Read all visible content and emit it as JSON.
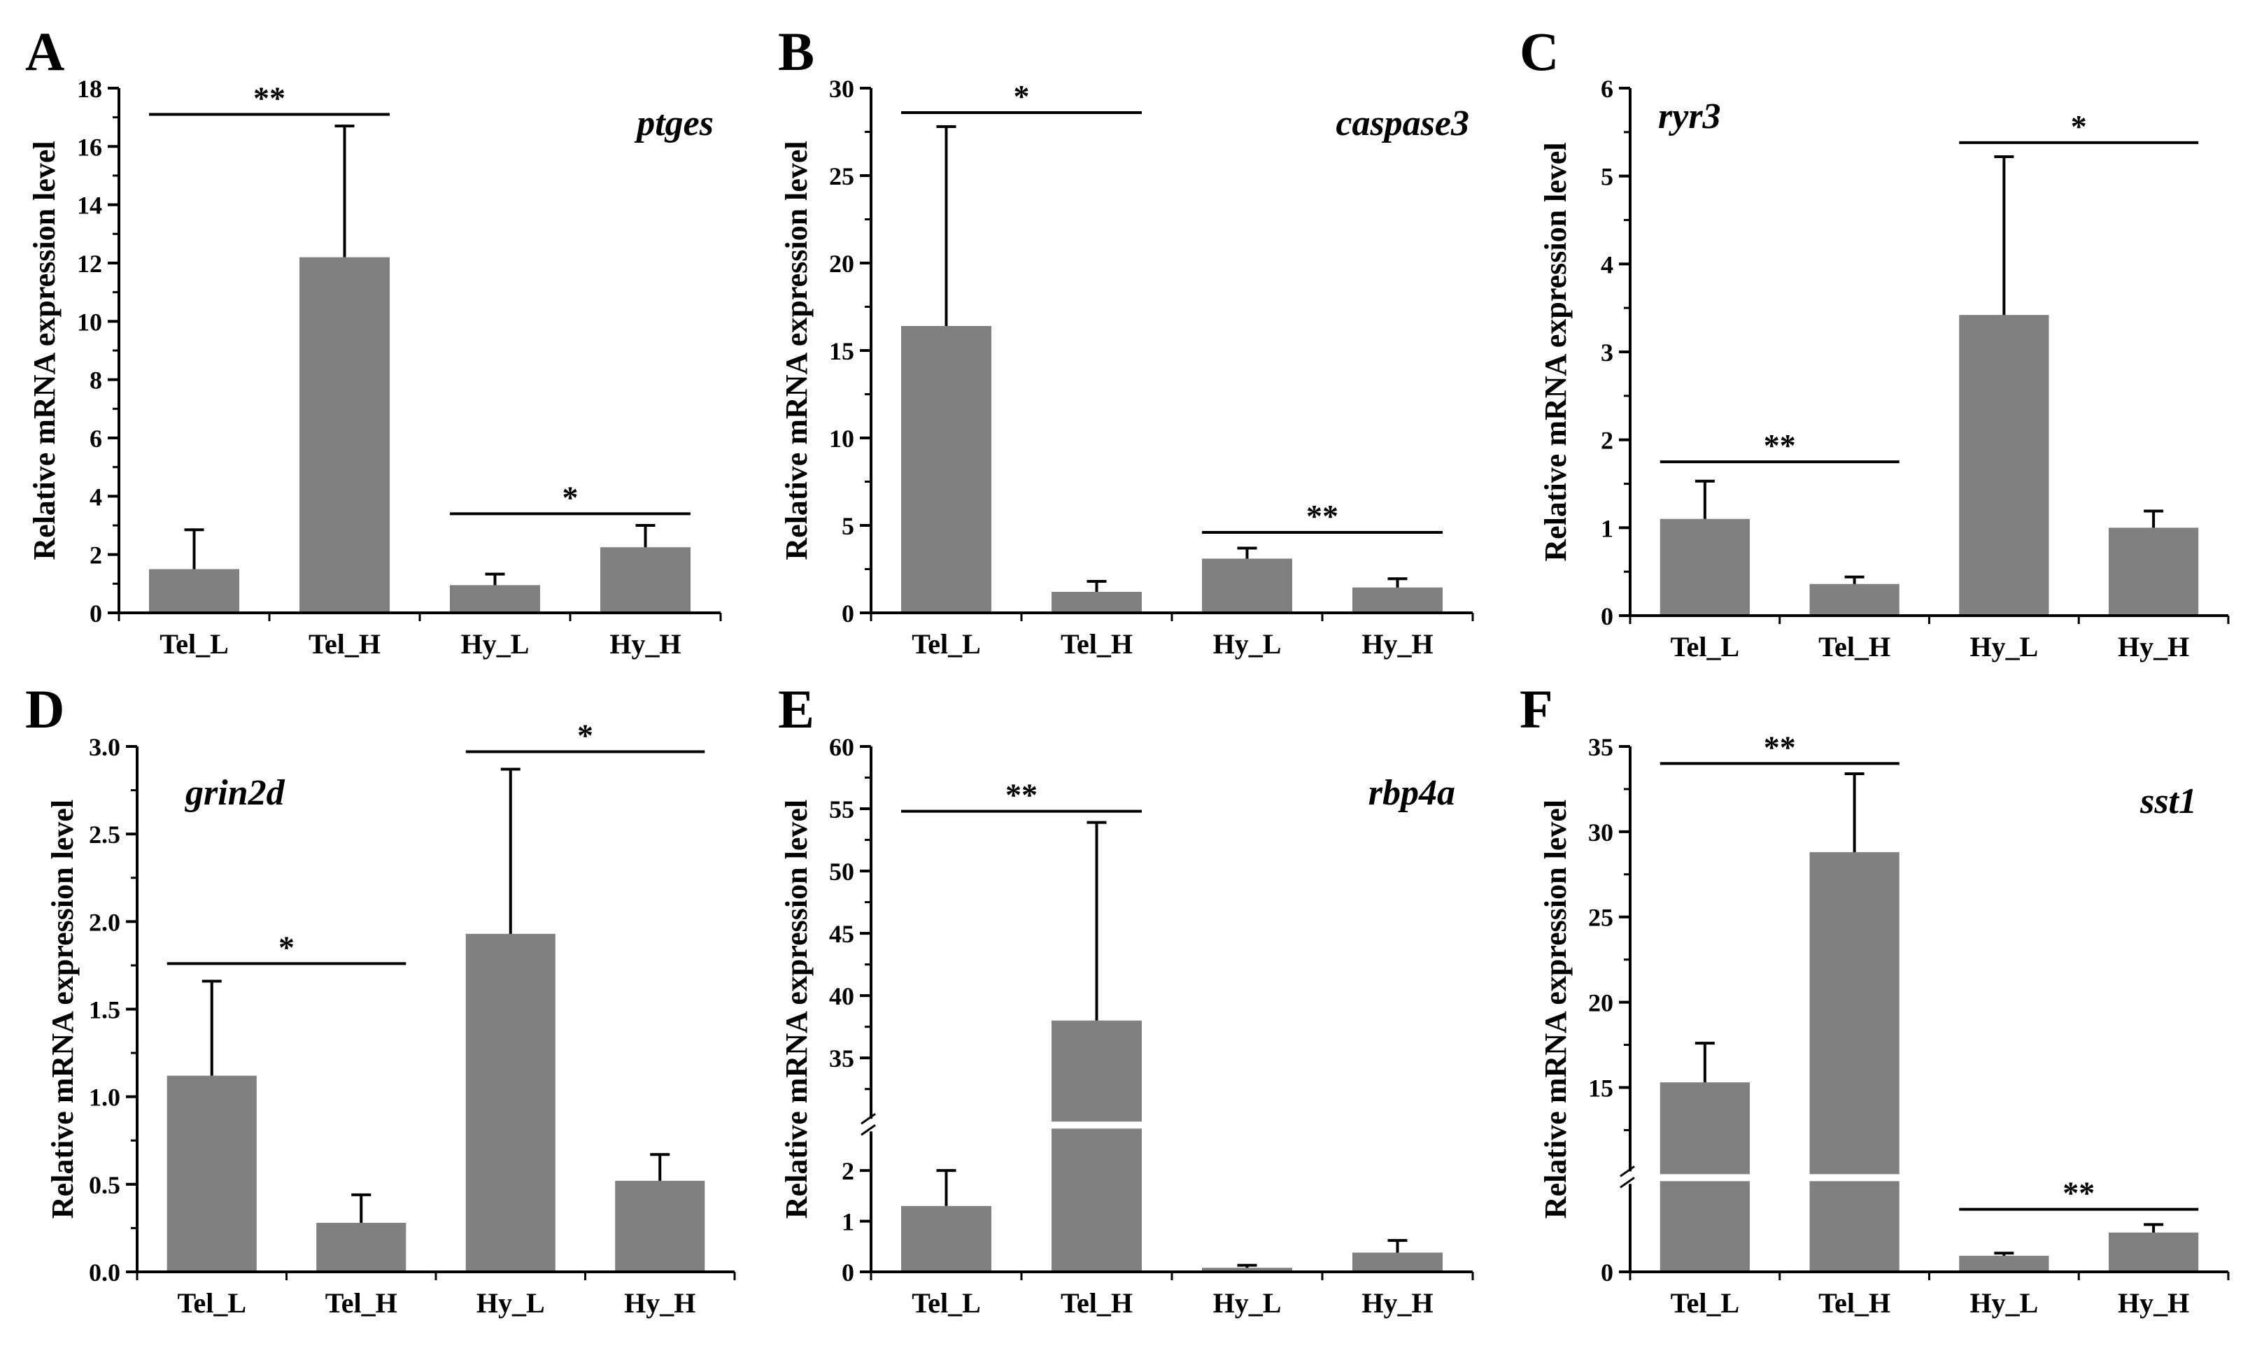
{
  "figure": {
    "bar_color": "#808080",
    "axis_color": "#000000"
  },
  "chart_data": [
    {
      "panel": "A",
      "gene": "ptges",
      "type": "bar",
      "ylabel": "Relative mRNA expression level",
      "categories": [
        "Tel_L",
        "Tel_H",
        "Hy_L",
        "Hy_H"
      ],
      "values": [
        1.5,
        12.2,
        0.95,
        2.25
      ],
      "errors": [
        1.35,
        4.5,
        0.38,
        0.75
      ],
      "ylim": [
        0,
        18
      ],
      "ticks": [
        "0",
        "2",
        "4",
        "6",
        "8",
        "10",
        "12",
        "14",
        "16",
        "18"
      ],
      "gene_position": "top-right",
      "significance": [
        {
          "from": 0,
          "to": 1,
          "label": "**",
          "y": 17.1
        },
        {
          "from": 2,
          "to": 3,
          "label": "*",
          "y": 3.4
        }
      ]
    },
    {
      "panel": "B",
      "gene": "caspase3",
      "type": "bar",
      "ylabel": "Relative mRNA expression level",
      "categories": [
        "Tel_L",
        "Tel_H",
        "Hy_L",
        "Hy_H"
      ],
      "values": [
        16.4,
        1.2,
        3.1,
        1.45
      ],
      "errors": [
        11.4,
        0.6,
        0.6,
        0.5
      ],
      "ylim": [
        0,
        30
      ],
      "ticks": [
        "0",
        "5",
        "10",
        "15",
        "20",
        "25",
        "30"
      ],
      "gene_position": "top-right",
      "significance": [
        {
          "from": 0,
          "to": 1,
          "label": "*",
          "y": 28.6
        },
        {
          "from": 2,
          "to": 3,
          "label": "**",
          "y": 4.6
        }
      ]
    },
    {
      "panel": "C",
      "gene": "ryr3",
      "type": "bar",
      "ylabel": "Relative mRNA expression level",
      "categories": [
        "Tel_L",
        "Tel_H",
        "Hy_L",
        "Hy_H"
      ],
      "values": [
        1.1,
        0.36,
        3.42,
        1.0
      ],
      "errors": [
        0.43,
        0.08,
        1.8,
        0.19
      ],
      "ylim": [
        0,
        6
      ],
      "ticks": [
        "0",
        "1",
        "2",
        "3",
        "4",
        "5",
        "6"
      ],
      "gene_position": "top-left",
      "significance": [
        {
          "from": 0,
          "to": 1,
          "label": "**",
          "y": 1.75
        },
        {
          "from": 2,
          "to": 3,
          "label": "*",
          "y": 5.38
        }
      ]
    },
    {
      "panel": "D",
      "gene": "grin2d",
      "type": "bar",
      "ylabel": "Relative mRNA expression level",
      "categories": [
        "Tel_L",
        "Tel_H",
        "Hy_L",
        "Hy_H"
      ],
      "values": [
        1.12,
        0.28,
        1.93,
        0.52
      ],
      "errors": [
        0.54,
        0.16,
        0.94,
        0.15
      ],
      "ylim": [
        0,
        3.0
      ],
      "ticks": [
        "0.0",
        "0.5",
        "1.0",
        "1.5",
        "2.0",
        "2.5",
        "3.0"
      ],
      "gene_position": "top-left",
      "significance": [
        {
          "from": 0,
          "to": 1,
          "label": "*",
          "y": 1.76
        },
        {
          "from": 2,
          "to": 3,
          "label": "*",
          "y": 2.97
        }
      ]
    },
    {
      "panel": "E",
      "gene": "rbp4a",
      "type": "bar",
      "ylabel": "Relative mRNA expression level",
      "categories": [
        "Tel_L",
        "Tel_H",
        "Hy_L",
        "Hy_H"
      ],
      "values": [
        1.3,
        38.0,
        0.08,
        0.38
      ],
      "errors": [
        0.7,
        15.9,
        0.05,
        0.24
      ],
      "axis_break": {
        "lower": [
          0,
          2.8
        ],
        "upper": [
          30,
          60
        ],
        "lower_fraction": 0.27
      },
      "ticks_lower": [
        "0",
        "1",
        "2"
      ],
      "ticks_upper": [
        "35",
        "40",
        "45",
        "50",
        "55",
        "60"
      ],
      "gene_position": "top-right",
      "significance": [
        {
          "from": 0,
          "to": 1,
          "label": "**",
          "y": 54.8
        }
      ]
    },
    {
      "panel": "F",
      "gene": "sst1",
      "type": "bar",
      "ylabel": "Relative mRNA expression level",
      "categories": [
        "Tel_L",
        "Tel_H",
        "Hy_L",
        "Hy_H"
      ],
      "values": [
        15.3,
        28.8,
        0.9,
        2.2
      ],
      "errors": [
        2.3,
        4.6,
        0.15,
        0.45
      ],
      "axis_break": {
        "lower": [
          0,
          5
        ],
        "upper": [
          10,
          35
        ],
        "lower_fraction": 0.17
      },
      "ticks_lower": [
        "0"
      ],
      "ticks_upper": [
        "15",
        "20",
        "25",
        "30",
        "35"
      ],
      "gene_position": "top-right",
      "significance": [
        {
          "from": 0,
          "to": 1,
          "label": "**",
          "y": 34.0
        },
        {
          "from": 2,
          "to": 3,
          "label": "**",
          "y": 3.5
        }
      ]
    }
  ]
}
